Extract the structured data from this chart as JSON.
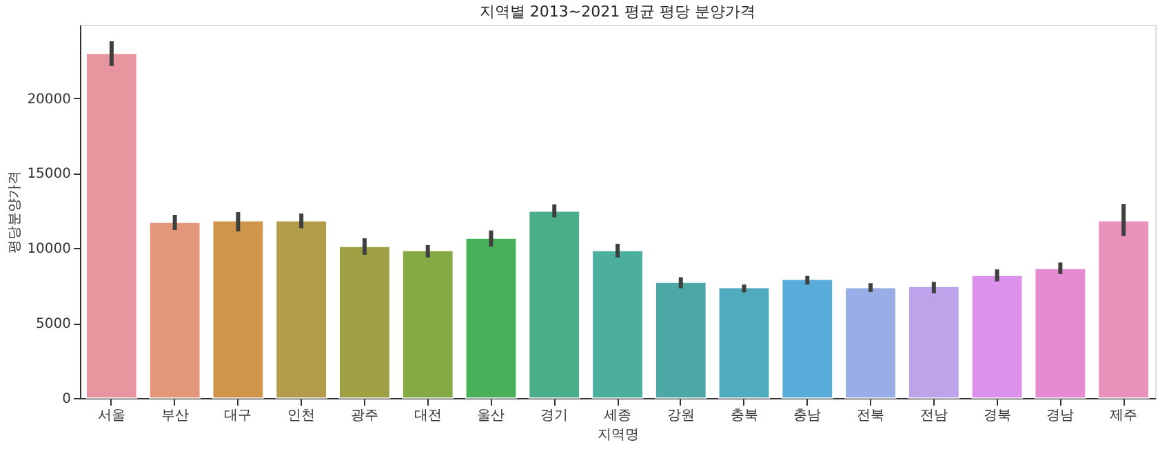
{
  "chart_data": {
    "type": "bar",
    "title": "지역별 2013~2021 평균 평당 분양가격",
    "xlabel": "지역명",
    "ylabel": "평당분양가격",
    "categories": [
      "서울",
      "부산",
      "대구",
      "인천",
      "광주",
      "대전",
      "울산",
      "경기",
      "세종",
      "강원",
      "충북",
      "충남",
      "전북",
      "전남",
      "경북",
      "경남",
      "제주"
    ],
    "values": [
      22980,
      11720,
      11820,
      11820,
      10110,
      9830,
      10660,
      12460,
      9830,
      7720,
      7360,
      7910,
      7360,
      7450,
      8180,
      8640,
      11820
    ],
    "errors": [
      [
        22150,
        23800
      ],
      [
        11210,
        12220
      ],
      [
        11120,
        12400
      ],
      [
        11330,
        12310
      ],
      [
        9560,
        10660
      ],
      [
        9380,
        10200
      ],
      [
        10110,
        11180
      ],
      [
        12060,
        12920
      ],
      [
        9380,
        10290
      ],
      [
        7320,
        8060
      ],
      [
        7050,
        7570
      ],
      [
        7570,
        8150
      ],
      [
        7080,
        7660
      ],
      [
        6990,
        7750
      ],
      [
        7780,
        8580
      ],
      [
        8280,
        9040
      ],
      [
        10810,
        12950
      ]
    ],
    "colors": [
      "#e8959f",
      "#e4967a",
      "#cf964b",
      "#b39c49",
      "#9f9f44",
      "#84a945",
      "#49b05a",
      "#4aae88",
      "#4caf9b",
      "#4ba8a5",
      "#51abbe",
      "#57acd9",
      "#99aee6",
      "#bca3ea",
      "#dc92ea",
      "#e58bd2",
      "#e892bb"
    ],
    "ylim": [
      0,
      24900
    ],
    "yticks": [
      0,
      5000,
      10000,
      15000,
      20000
    ],
    "grid": false
  }
}
